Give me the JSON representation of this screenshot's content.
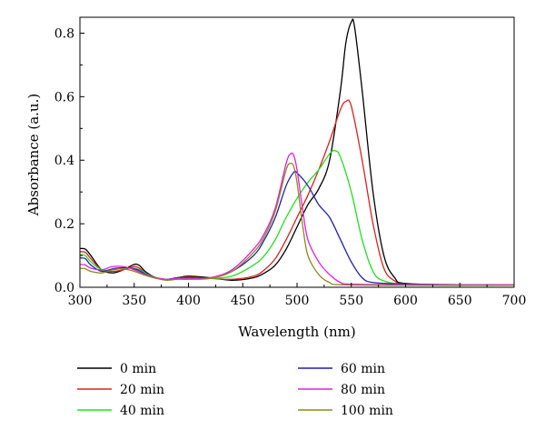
{
  "chart_data": {
    "type": "line",
    "xlabel": "Wavelength (nm)",
    "ylabel": "Absorbance (a.u.)",
    "xlim": [
      300,
      700
    ],
    "ylim": [
      0,
      0.85
    ],
    "xticks": [
      300,
      350,
      400,
      450,
      500,
      550,
      600,
      650,
      700
    ],
    "yticks": [
      0.0,
      0.2,
      0.4,
      0.6,
      0.8
    ],
    "ytick_labels": [
      "0.0",
      "0.2",
      "0.4",
      "0.6",
      "0.8"
    ],
    "grid": false,
    "legend_position": "bottom",
    "series": [
      {
        "name": "0 min",
        "color": "#000000",
        "points": [
          [
            300,
            0.122
          ],
          [
            305,
            0.12
          ],
          [
            310,
            0.1
          ],
          [
            320,
            0.055
          ],
          [
            330,
            0.045
          ],
          [
            340,
            0.055
          ],
          [
            350,
            0.072
          ],
          [
            355,
            0.068
          ],
          [
            360,
            0.05
          ],
          [
            370,
            0.03
          ],
          [
            380,
            0.025
          ],
          [
            390,
            0.03
          ],
          [
            400,
            0.035
          ],
          [
            420,
            0.03
          ],
          [
            440,
            0.022
          ],
          [
            460,
            0.03
          ],
          [
            470,
            0.045
          ],
          [
            480,
            0.07
          ],
          [
            490,
            0.12
          ],
          [
            500,
            0.19
          ],
          [
            510,
            0.26
          ],
          [
            520,
            0.31
          ],
          [
            530,
            0.4
          ],
          [
            540,
            0.62
          ],
          [
            545,
            0.77
          ],
          [
            550,
            0.835
          ],
          [
            553,
            0.82
          ],
          [
            560,
            0.62
          ],
          [
            570,
            0.3
          ],
          [
            580,
            0.1
          ],
          [
            590,
            0.03
          ],
          [
            600,
            0.012
          ],
          [
            650,
            0.008
          ],
          [
            700,
            0.008
          ]
        ]
      },
      {
        "name": "20 min",
        "color": "#e02020",
        "points": [
          [
            300,
            0.112
          ],
          [
            305,
            0.11
          ],
          [
            310,
            0.09
          ],
          [
            320,
            0.055
          ],
          [
            330,
            0.05
          ],
          [
            340,
            0.055
          ],
          [
            350,
            0.065
          ],
          [
            355,
            0.06
          ],
          [
            360,
            0.045
          ],
          [
            370,
            0.03
          ],
          [
            380,
            0.025
          ],
          [
            390,
            0.03
          ],
          [
            400,
            0.032
          ],
          [
            420,
            0.028
          ],
          [
            440,
            0.025
          ],
          [
            460,
            0.035
          ],
          [
            470,
            0.055
          ],
          [
            480,
            0.09
          ],
          [
            490,
            0.15
          ],
          [
            500,
            0.22
          ],
          [
            510,
            0.29
          ],
          [
            520,
            0.37
          ],
          [
            530,
            0.46
          ],
          [
            540,
            0.56
          ],
          [
            545,
            0.585
          ],
          [
            550,
            0.57
          ],
          [
            560,
            0.4
          ],
          [
            570,
            0.2
          ],
          [
            580,
            0.06
          ],
          [
            590,
            0.02
          ],
          [
            600,
            0.01
          ],
          [
            650,
            0.008
          ],
          [
            700,
            0.008
          ]
        ]
      },
      {
        "name": "40 min",
        "color": "#22e022",
        "points": [
          [
            300,
            0.102
          ],
          [
            305,
            0.1
          ],
          [
            310,
            0.08
          ],
          [
            320,
            0.055
          ],
          [
            330,
            0.055
          ],
          [
            340,
            0.06
          ],
          [
            350,
            0.06
          ],
          [
            355,
            0.055
          ],
          [
            360,
            0.045
          ],
          [
            370,
            0.03
          ],
          [
            380,
            0.025
          ],
          [
            390,
            0.03
          ],
          [
            400,
            0.03
          ],
          [
            420,
            0.028
          ],
          [
            440,
            0.035
          ],
          [
            460,
            0.07
          ],
          [
            470,
            0.1
          ],
          [
            480,
            0.15
          ],
          [
            490,
            0.22
          ],
          [
            500,
            0.28
          ],
          [
            510,
            0.33
          ],
          [
            520,
            0.37
          ],
          [
            530,
            0.42
          ],
          [
            535,
            0.43
          ],
          [
            540,
            0.41
          ],
          [
            550,
            0.3
          ],
          [
            560,
            0.15
          ],
          [
            570,
            0.05
          ],
          [
            580,
            0.02
          ],
          [
            600,
            0.01
          ],
          [
            650,
            0.008
          ],
          [
            700,
            0.008
          ]
        ]
      },
      {
        "name": "60 min",
        "color": "#1f1fb0",
        "points": [
          [
            300,
            0.092
          ],
          [
            305,
            0.09
          ],
          [
            310,
            0.07
          ],
          [
            320,
            0.05
          ],
          [
            330,
            0.058
          ],
          [
            340,
            0.062
          ],
          [
            350,
            0.058
          ],
          [
            355,
            0.052
          ],
          [
            360,
            0.042
          ],
          [
            370,
            0.03
          ],
          [
            380,
            0.025
          ],
          [
            390,
            0.03
          ],
          [
            400,
            0.03
          ],
          [
            420,
            0.03
          ],
          [
            440,
            0.05
          ],
          [
            460,
            0.1
          ],
          [
            470,
            0.15
          ],
          [
            480,
            0.22
          ],
          [
            490,
            0.32
          ],
          [
            497,
            0.362
          ],
          [
            500,
            0.36
          ],
          [
            510,
            0.32
          ],
          [
            520,
            0.26
          ],
          [
            530,
            0.22
          ],
          [
            540,
            0.15
          ],
          [
            550,
            0.08
          ],
          [
            560,
            0.03
          ],
          [
            570,
            0.015
          ],
          [
            600,
            0.01
          ],
          [
            650,
            0.008
          ],
          [
            700,
            0.008
          ]
        ]
      },
      {
        "name": "80 min",
        "color": "#e020e0",
        "points": [
          [
            300,
            0.072
          ],
          [
            305,
            0.07
          ],
          [
            310,
            0.06
          ],
          [
            320,
            0.055
          ],
          [
            330,
            0.065
          ],
          [
            340,
            0.065
          ],
          [
            350,
            0.055
          ],
          [
            360,
            0.04
          ],
          [
            370,
            0.03
          ],
          [
            380,
            0.025
          ],
          [
            390,
            0.028
          ],
          [
            400,
            0.028
          ],
          [
            420,
            0.03
          ],
          [
            440,
            0.055
          ],
          [
            460,
            0.12
          ],
          [
            470,
            0.17
          ],
          [
            480,
            0.25
          ],
          [
            490,
            0.39
          ],
          [
            494,
            0.42
          ],
          [
            497,
            0.415
          ],
          [
            500,
            0.37
          ],
          [
            505,
            0.25
          ],
          [
            510,
            0.15
          ],
          [
            520,
            0.08
          ],
          [
            530,
            0.04
          ],
          [
            540,
            0.015
          ],
          [
            550,
            0.01
          ],
          [
            600,
            0.008
          ],
          [
            700,
            0.008
          ]
        ]
      },
      {
        "name": "100 min",
        "color": "#8a8a1c",
        "points": [
          [
            300,
            0.06
          ],
          [
            305,
            0.058
          ],
          [
            310,
            0.05
          ],
          [
            320,
            0.045
          ],
          [
            330,
            0.055
          ],
          [
            340,
            0.058
          ],
          [
            350,
            0.05
          ],
          [
            360,
            0.038
          ],
          [
            370,
            0.028
          ],
          [
            380,
            0.022
          ],
          [
            390,
            0.025
          ],
          [
            400,
            0.025
          ],
          [
            420,
            0.028
          ],
          [
            440,
            0.05
          ],
          [
            460,
            0.11
          ],
          [
            470,
            0.16
          ],
          [
            480,
            0.24
          ],
          [
            490,
            0.37
          ],
          [
            494,
            0.39
          ],
          [
            497,
            0.38
          ],
          [
            500,
            0.33
          ],
          [
            505,
            0.2
          ],
          [
            510,
            0.1
          ],
          [
            520,
            0.04
          ],
          [
            530,
            0.015
          ],
          [
            540,
            0.008
          ],
          [
            600,
            0.006
          ],
          [
            700,
            0.006
          ]
        ]
      }
    ]
  }
}
